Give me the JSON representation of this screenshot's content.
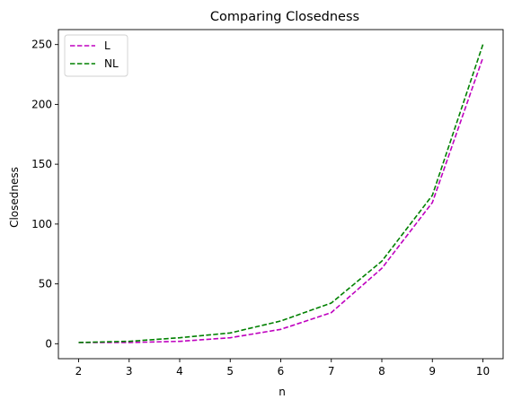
{
  "chart_data": {
    "type": "line",
    "title": "Comparing Closedness",
    "xlabel": "n",
    "ylabel": "Closedness",
    "x": [
      2,
      3,
      4,
      5,
      6,
      7,
      8,
      9,
      10
    ],
    "xlim": [
      1.6,
      10.4
    ],
    "ylim": [
      -12.5,
      262.5
    ],
    "xticks": [
      2,
      3,
      4,
      5,
      6,
      7,
      8,
      9,
      10
    ],
    "yticks": [
      0,
      50,
      100,
      150,
      200,
      250
    ],
    "grid": false,
    "legend_position": "top-left",
    "series": [
      {
        "name": "L",
        "color": "#bf00bf",
        "linestyle": "dashed",
        "values": [
          1,
          1,
          2,
          5,
          12,
          26,
          63,
          118,
          239
        ]
      },
      {
        "name": "NL",
        "color": "#008000",
        "linestyle": "dashed",
        "values": [
          1,
          2,
          5,
          9,
          19,
          34,
          69,
          124,
          250
        ]
      }
    ]
  }
}
